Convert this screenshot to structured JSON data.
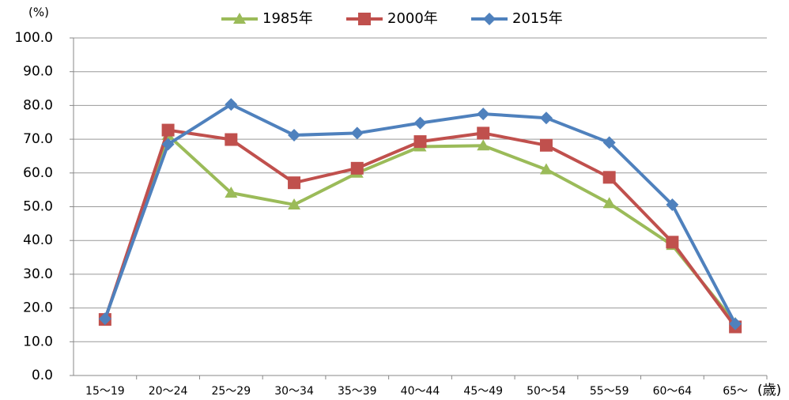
{
  "chart_data": {
    "type": "line",
    "y_axis_label": "(%)",
    "x_axis_label": "(歳)",
    "categories": [
      "15〜19",
      "20〜24",
      "25〜29",
      "30〜34",
      "35〜39",
      "40〜44",
      "45〜49",
      "50〜54",
      "55〜59",
      "60〜64",
      "65〜"
    ],
    "series": [
      {
        "name": "1985年",
        "color": "#9bbb59",
        "marker": "triangle",
        "values": [
          16.6,
          71.2,
          54.1,
          50.6,
          60.0,
          67.8,
          68.1,
          61.0,
          51.0,
          38.6,
          15.5
        ]
      },
      {
        "name": "2000年",
        "color": "#c0504d",
        "marker": "square",
        "values": [
          16.6,
          72.7,
          69.9,
          57.1,
          61.4,
          69.3,
          71.8,
          68.2,
          58.7,
          39.5,
          14.4
        ]
      },
      {
        "name": "2015年",
        "color": "#4f81bd",
        "marker": "diamond",
        "values": [
          16.8,
          68.5,
          80.3,
          71.2,
          71.8,
          74.8,
          77.5,
          76.3,
          69.0,
          50.6,
          15.3
        ]
      }
    ],
    "ylim": [
      0,
      100
    ],
    "yticks": [
      {
        "value": 0,
        "label": "0.0"
      },
      {
        "value": 10,
        "label": "10.0"
      },
      {
        "value": 20,
        "label": "20.0"
      },
      {
        "value": 30,
        "label": "30.0"
      },
      {
        "value": 40,
        "label": "40.0"
      },
      {
        "value": 50,
        "label": "50.0"
      },
      {
        "value": 60,
        "label": "60.0"
      },
      {
        "value": 70,
        "label": "70.0"
      },
      {
        "value": 80,
        "label": "80.0"
      },
      {
        "value": 90,
        "label": "90.0"
      },
      {
        "value": 100,
        "label": "100.0"
      }
    ],
    "grid": true,
    "legend": "top"
  }
}
